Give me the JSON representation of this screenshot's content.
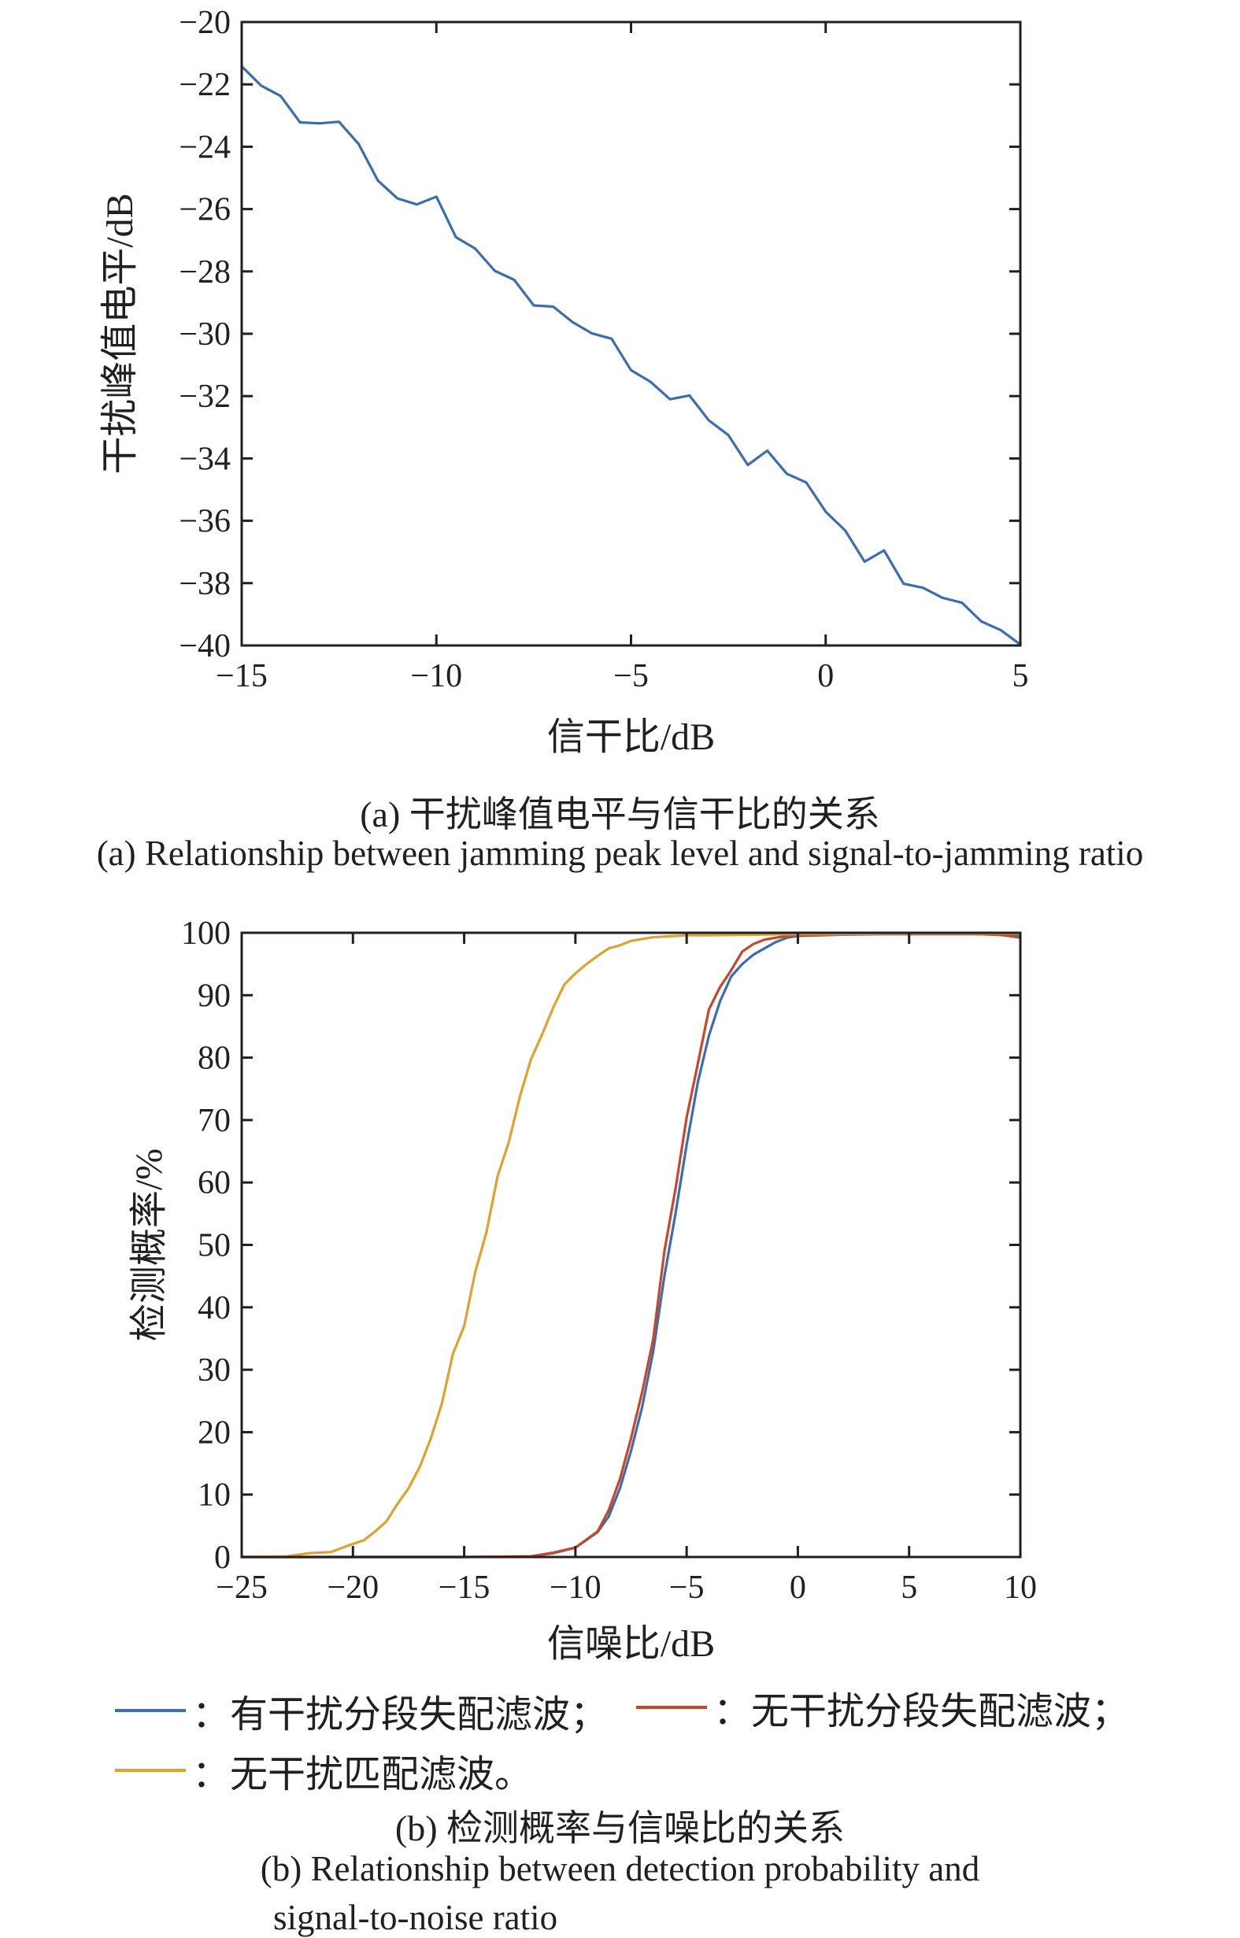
{
  "chart_data": [
    {
      "type": "line",
      "title": "",
      "xlabel": "信干比/dB",
      "ylabel": "干扰峰值电平/dB",
      "xlim": [
        -15,
        5
      ],
      "ylim": [
        -40,
        -20
      ],
      "xticks": [
        -15,
        -10,
        -5,
        0,
        5
      ],
      "yticks": [
        -20,
        -22,
        -24,
        -26,
        -28,
        -30,
        -32,
        -34,
        -36,
        -38,
        -40
      ],
      "xtick_labels": [
        "−15",
        "−10",
        "−5",
        "0",
        "5"
      ],
      "ytick_labels": [
        "−20",
        "−22",
        "−24",
        "−26",
        "−28",
        "−30",
        "−32",
        "−34",
        "−36",
        "−38",
        "−40"
      ],
      "grid": false,
      "series": [
        {
          "color": "#3b6db3",
          "x": [
            -15,
            -14.5,
            -14,
            -13.5,
            -13,
            -12.5,
            -12,
            -11.5,
            -11,
            -10.5,
            -10,
            -9.5,
            -9,
            -8.5,
            -8,
            -7.5,
            -7,
            -6.5,
            -6,
            -5.5,
            -5,
            -4.5,
            -4,
            -3.5,
            -3,
            -2.5,
            -2,
            -1.5,
            -1,
            -0.5,
            0,
            0.5,
            1,
            1.5,
            2,
            2.5,
            3,
            3.5,
            4,
            4.5,
            5
          ],
          "y": [
            -21.42,
            -22.04,
            -22.37,
            -23.22,
            -23.25,
            -23.2,
            -23.91,
            -25.09,
            -25.66,
            -25.85,
            -25.6,
            -26.9,
            -27.27,
            -27.98,
            -28.27,
            -29.09,
            -29.13,
            -29.63,
            -29.99,
            -30.16,
            -31.17,
            -31.54,
            -32.1,
            -31.98,
            -32.78,
            -33.25,
            -34.21,
            -33.75,
            -34.49,
            -34.77,
            -35.71,
            -36.31,
            -37.31,
            -36.95,
            -38.02,
            -38.15,
            -38.47,
            -38.63,
            -39.23,
            -39.51,
            -39.97
          ]
        }
      ],
      "caption_cn": "(a) 干扰峰值电平与信干比的关系",
      "caption_en": "(a) Relationship between jamming peak level and signal-to-jamming ratio"
    },
    {
      "type": "line",
      "title": "",
      "xlabel": "信噪比/dB",
      "ylabel": "检测概率/%",
      "xlim": [
        -25,
        10
      ],
      "ylim": [
        0,
        100
      ],
      "xticks": [
        -25,
        -20,
        -15,
        -10,
        -5,
        0,
        5,
        10
      ],
      "yticks": [
        0,
        10,
        20,
        30,
        40,
        50,
        60,
        70,
        80,
        90,
        100
      ],
      "xtick_labels": [
        "−25",
        "−20",
        "−15",
        "−10",
        "−5",
        "0",
        "5",
        "10"
      ],
      "ytick_labels": [
        "0",
        "10",
        "20",
        "30",
        "40",
        "50",
        "60",
        "70",
        "80",
        "90",
        "100"
      ],
      "grid": false,
      "legend_placement": "bottom",
      "series": [
        {
          "name": "有干扰分段失配滤波",
          "color": "#3b6db3",
          "x": [
            -25,
            -20,
            -15,
            -12,
            -11,
            -10,
            -9,
            -8.5,
            -8,
            -7.5,
            -7,
            -6.5,
            -6,
            -5.5,
            -5,
            -4.5,
            -4,
            -3.5,
            -3,
            -2.5,
            -2,
            -1.5,
            -1,
            -0.5,
            0,
            2,
            4,
            6,
            8,
            10
          ],
          "y": [
            0,
            0,
            0,
            0.1,
            0.6,
            1.5,
            4.0,
            6.5,
            11,
            17,
            24,
            33,
            45,
            55,
            66,
            76,
            83.5,
            89,
            93,
            95,
            96.5,
            97.5,
            98.5,
            99.2,
            99.5,
            99.7,
            99.8,
            99.8,
            99.8,
            99.6
          ]
        },
        {
          "name": "无干扰分段失配滤波",
          "color": "#c7472a",
          "x": [
            -25,
            -20,
            -15,
            -12,
            -11,
            -10,
            -9,
            -8.5,
            -8,
            -7.5,
            -7,
            -6.5,
            -6,
            -5.5,
            -5,
            -4.5,
            -4,
            -3.5,
            -3,
            -2.5,
            -2,
            -1.5,
            -1,
            -0.5,
            0,
            2,
            4,
            6,
            8,
            9,
            9.5,
            10
          ],
          "y": [
            0,
            0,
            0,
            0.1,
            0.7,
            1.5,
            4.1,
            7.5,
            12.5,
            19,
            26.4,
            35,
            49,
            59,
            70.4,
            79,
            87.7,
            91.3,
            94,
            97,
            98.2,
            98.9,
            99.2,
            99.5,
            99.6,
            99.8,
            99.8,
            99.8,
            99.8,
            99.7,
            99.5,
            99.2
          ]
        },
        {
          "name": "无干扰匹配滤波",
          "color": "#e0a22e",
          "x": [
            -25,
            -23,
            -22,
            -21,
            -20,
            -19.5,
            -19,
            -18.5,
            -18,
            -17.5,
            -17,
            -16.5,
            -16,
            -15.5,
            -15,
            -14.5,
            -14,
            -13.5,
            -13,
            -12.5,
            -12,
            -11.5,
            -11,
            -10.5,
            -10,
            -9.5,
            -9,
            -8.5,
            -8,
            -7.5,
            -7,
            -6.5,
            -6,
            -5,
            -4,
            -2,
            0,
            2,
            5,
            10
          ],
          "y": [
            0,
            0.1,
            0.6,
            0.8,
            2.1,
            2.7,
            4.1,
            5.7,
            8.5,
            11,
            14.4,
            19,
            24.6,
            32.6,
            37,
            45.7,
            52,
            61,
            66.4,
            73.7,
            79.7,
            83.7,
            88,
            91.7,
            93.5,
            95,
            96.3,
            97.5,
            98,
            98.7,
            99,
            99.3,
            99.4,
            99.6,
            99.6,
            99.7,
            99.8,
            99.8,
            99.9,
            99.9
          ]
        }
      ],
      "legend": [
        {
          "label": "：有干扰分段失配滤波；",
          "color": "#3b6db3"
        },
        {
          "label": "：无干扰分段失配滤波；",
          "color": "#c7472a"
        },
        {
          "label": "：无干扰匹配滤波。",
          "color": "#e0a22e"
        }
      ],
      "caption_cn": "(b) 检测概率与信噪比的关系",
      "caption_en_line1": "(b) Relationship between detection probability and",
      "caption_en_line2": "signal-to-noise ratio"
    }
  ]
}
